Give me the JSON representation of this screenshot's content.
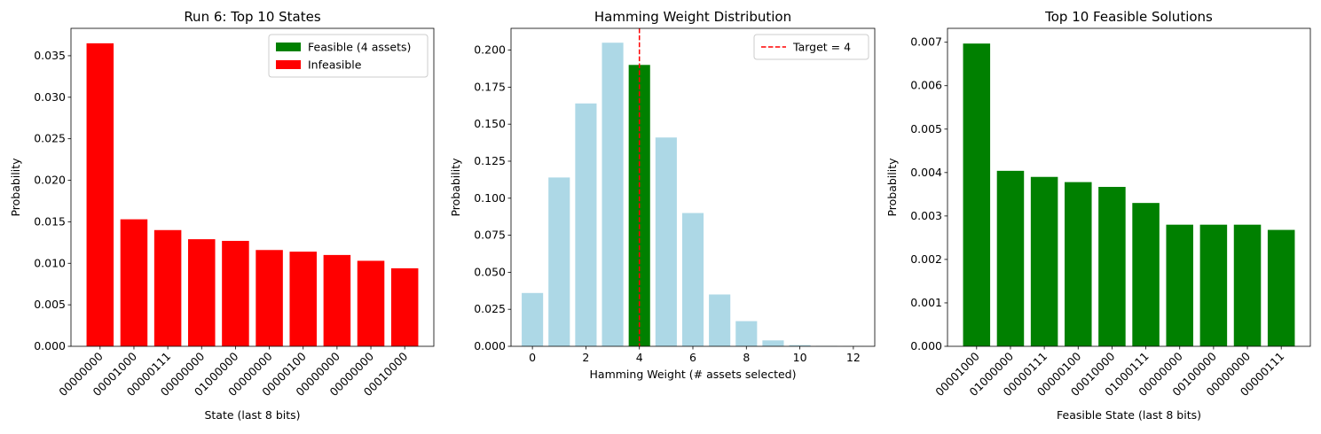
{
  "chart_data": [
    {
      "type": "bar",
      "title": "Run 6: Top 10 States",
      "xlabel": "State (last 8 bits)",
      "ylabel": "Probability",
      "ylim": [
        0,
        0.0383
      ],
      "yticks": [
        "0.000",
        "0.005",
        "0.010",
        "0.015",
        "0.020",
        "0.025",
        "0.030",
        "0.035"
      ],
      "categories": [
        "00000000",
        "00001000",
        "00000111",
        "00000000",
        "01000000",
        "00000000",
        "00000100",
        "00000000",
        "00000000",
        "00010000"
      ],
      "values": [
        0.0365,
        0.0153,
        0.014,
        0.0129,
        0.0127,
        0.0116,
        0.0114,
        0.011,
        0.0103,
        0.0094
      ],
      "bar_colors": [
        "#ff0000",
        "#ff0000",
        "#ff0000",
        "#ff0000",
        "#ff0000",
        "#ff0000",
        "#ff0000",
        "#ff0000",
        "#ff0000",
        "#ff0000"
      ],
      "legend": {
        "placement": "top-right",
        "entries": [
          {
            "label": "Feasible (4 assets)",
            "color": "#008000"
          },
          {
            "label": "Infeasible",
            "color": "#ff0000"
          }
        ]
      }
    },
    {
      "type": "bar",
      "title": "Hamming Weight Distribution",
      "xlabel": "Hamming Weight (# assets selected)",
      "ylabel": "Probability",
      "xlim": [
        -0.8,
        12.8
      ],
      "ylim": [
        0,
        0.2147
      ],
      "xticks": [
        "0",
        "2",
        "4",
        "6",
        "8",
        "10",
        "12"
      ],
      "yticks": [
        "0.000",
        "0.025",
        "0.050",
        "0.075",
        "0.100",
        "0.125",
        "0.150",
        "0.175",
        "0.200"
      ],
      "x": [
        0,
        1,
        2,
        3,
        4,
        5,
        6,
        7,
        8,
        9,
        10,
        11,
        12
      ],
      "values": [
        0.036,
        0.114,
        0.164,
        0.205,
        0.19,
        0.141,
        0.09,
        0.035,
        0.017,
        0.004,
        0.0008,
        0.0003,
        0.0001
      ],
      "bar_colors": [
        "#add8e6",
        "#add8e6",
        "#add8e6",
        "#add8e6",
        "#008000",
        "#add8e6",
        "#add8e6",
        "#add8e6",
        "#add8e6",
        "#add8e6",
        "#add8e6",
        "#add8e6",
        "#add8e6"
      ],
      "target_line": {
        "x": 4,
        "color": "#ff0000"
      },
      "legend": {
        "placement": "top-right",
        "entries": [
          {
            "label": "Target = 4",
            "color": "#ff0000"
          }
        ]
      }
    },
    {
      "type": "bar",
      "title": "Top 10 Feasible Solutions",
      "xlabel": "Feasible State (last 8 bits)",
      "ylabel": "Probability",
      "ylim": [
        0,
        0.00732
      ],
      "yticks": [
        "0.000",
        "0.001",
        "0.002",
        "0.003",
        "0.004",
        "0.005",
        "0.006",
        "0.007"
      ],
      "categories": [
        "00001000",
        "01000000",
        "00000111",
        "00000100",
        "00010000",
        "01000111",
        "00000000",
        "00100000",
        "00000000",
        "00000111"
      ],
      "values": [
        0.00697,
        0.00404,
        0.0039,
        0.00378,
        0.00367,
        0.0033,
        0.0028,
        0.0028,
        0.0028,
        0.00268
      ],
      "bar_colors": [
        "#008000",
        "#008000",
        "#008000",
        "#008000",
        "#008000",
        "#008000",
        "#008000",
        "#008000",
        "#008000",
        "#008000"
      ]
    }
  ]
}
